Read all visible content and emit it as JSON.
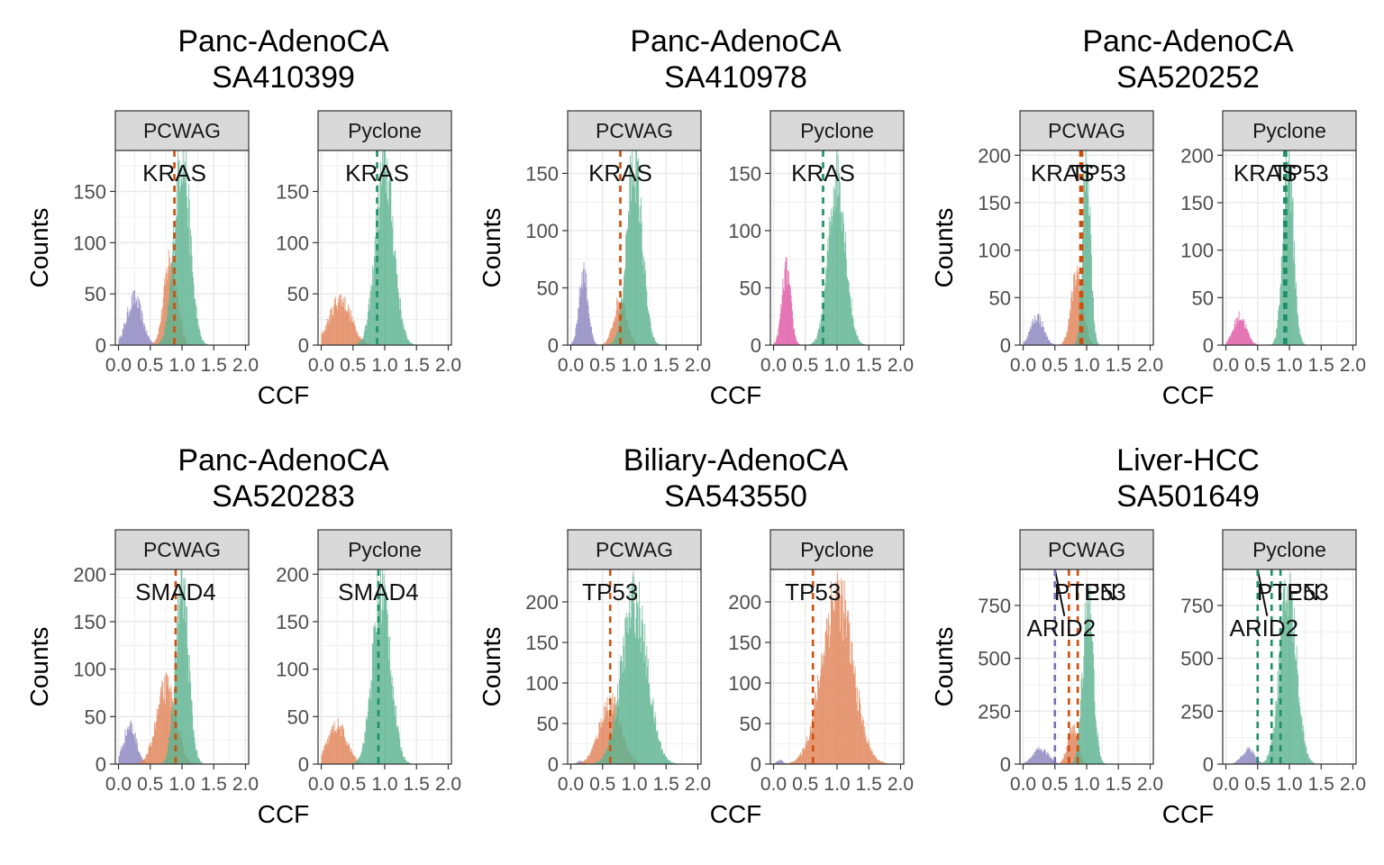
{
  "colors": {
    "purple": "#8e87c0",
    "orange": "#e2855a",
    "green": "#5fb492",
    "pink": "#e05aa6",
    "line_orange": "#cf4f0d",
    "line_green": "#1f8f69",
    "line_purple": "#7570b3",
    "strip_fill": "#d9d9d9",
    "grid": "#ebebeb"
  },
  "chart_data": [
    {
      "type": "histogram",
      "title": "Panc-AdenoCA\nSA410399",
      "xlabel": "CCF",
      "ylabel": "Counts",
      "xlim": [
        -0.05,
        2.05
      ],
      "x_ticks": [
        "0.0",
        "0.5",
        "1.0",
        "1.5",
        "2.0"
      ],
      "y_ticks": [
        0,
        50,
        100,
        150
      ],
      "ylim": [
        0,
        190
      ],
      "facets": [
        {
          "strip": "PCWAG",
          "clusters": [
            {
              "color": "purple",
              "mean": 0.25,
              "sd": 0.12,
              "peak": 45
            },
            {
              "color": "orange",
              "mean": 0.82,
              "sd": 0.1,
              "peak": 85
            },
            {
              "color": "green",
              "mean": 1.0,
              "sd": 0.12,
              "peak": 190
            }
          ],
          "vlines": [
            {
              "x": 0.88,
              "color": "line_orange"
            }
          ],
          "labels": [
            {
              "text": "KRAS",
              "x": 0.88
            }
          ]
        },
        {
          "strip": "Pyclone",
          "clusters": [
            {
              "color": "orange",
              "mean": 0.3,
              "sd": 0.17,
              "peak": 45
            },
            {
              "color": "green",
              "mean": 1.0,
              "sd": 0.14,
              "peak": 175
            }
          ],
          "vlines": [
            {
              "x": 0.88,
              "color": "line_green"
            }
          ],
          "labels": [
            {
              "text": "KRAS",
              "x": 0.88
            }
          ]
        }
      ]
    },
    {
      "type": "histogram",
      "title": "Panc-AdenoCA\nSA410978",
      "xlabel": "CCF",
      "ylabel": "Counts",
      "xlim": [
        -0.05,
        2.05
      ],
      "x_ticks": [
        "0.0",
        "0.5",
        "1.0",
        "1.5",
        "2.0"
      ],
      "y_ticks": [
        0,
        50,
        100,
        150
      ],
      "ylim": [
        0,
        170
      ],
      "facets": [
        {
          "strip": "PCWAG",
          "clusters": [
            {
              "color": "purple",
              "mean": 0.2,
              "sd": 0.07,
              "peak": 65
            },
            {
              "color": "orange",
              "mean": 0.78,
              "sd": 0.1,
              "peak": 40
            },
            {
              "color": "green",
              "mean": 1.0,
              "sd": 0.12,
              "peak": 160
            }
          ],
          "vlines": [
            {
              "x": 0.78,
              "color": "line_orange"
            }
          ],
          "labels": [
            {
              "text": "KRAS",
              "x": 0.78
            }
          ]
        },
        {
          "strip": "Pyclone",
          "clusters": [
            {
              "color": "pink",
              "mean": 0.2,
              "sd": 0.07,
              "peak": 65
            },
            {
              "color": "green",
              "mean": 1.0,
              "sd": 0.13,
              "peak": 150
            }
          ],
          "vlines": [
            {
              "x": 0.78,
              "color": "line_green"
            }
          ],
          "labels": [
            {
              "text": "KRAS",
              "x": 0.78
            }
          ]
        }
      ]
    },
    {
      "type": "histogram",
      "title": "Panc-AdenoCA\nSA520252",
      "xlabel": "CCF",
      "ylabel": "Counts",
      "xlim": [
        -0.05,
        2.05
      ],
      "x_ticks": [
        "0.0",
        "0.5",
        "1.0",
        "1.5",
        "2.0"
      ],
      "y_ticks": [
        0,
        50,
        100,
        150,
        200
      ],
      "ylim": [
        0,
        205
      ],
      "facets": [
        {
          "strip": "PCWAG",
          "clusters": [
            {
              "color": "purple",
              "mean": 0.22,
              "sd": 0.1,
              "peak": 30
            },
            {
              "color": "orange",
              "mean": 0.85,
              "sd": 0.09,
              "peak": 75
            },
            {
              "color": "green",
              "mean": 1.0,
              "sd": 0.06,
              "peak": 200
            }
          ],
          "vlines": [
            {
              "x": 0.9,
              "color": "line_orange"
            },
            {
              "x": 0.93,
              "color": "line_orange"
            }
          ],
          "labels": [
            {
              "text": "KRAS",
              "x": 0.62
            },
            {
              "text": "TP53",
              "x": 1.18
            }
          ]
        },
        {
          "strip": "Pyclone",
          "clusters": [
            {
              "color": "pink",
              "mean": 0.22,
              "sd": 0.1,
              "peak": 30
            },
            {
              "color": "green",
              "mean": 0.98,
              "sd": 0.08,
              "peak": 200
            }
          ],
          "vlines": [
            {
              "x": 0.92,
              "color": "line_green"
            },
            {
              "x": 0.95,
              "color": "line_green"
            }
          ],
          "labels": [
            {
              "text": "KRAS",
              "x": 0.62
            },
            {
              "text": "TP53",
              "x": 1.18
            }
          ]
        }
      ]
    },
    {
      "type": "histogram",
      "title": "Panc-AdenoCA\nSA520283",
      "xlabel": "CCF",
      "ylabel": "Counts",
      "xlim": [
        -0.05,
        2.05
      ],
      "x_ticks": [
        "0.0",
        "0.5",
        "1.0",
        "1.5",
        "2.0"
      ],
      "y_ticks": [
        0,
        50,
        100,
        150,
        200
      ],
      "ylim": [
        0,
        205
      ],
      "facets": [
        {
          "strip": "PCWAG",
          "clusters": [
            {
              "color": "purple",
              "mean": 0.18,
              "sd": 0.1,
              "peak": 40
            },
            {
              "color": "orange",
              "mean": 0.75,
              "sd": 0.15,
              "peak": 80
            },
            {
              "color": "green",
              "mean": 1.0,
              "sd": 0.1,
              "peak": 190
            }
          ],
          "vlines": [
            {
              "x": 0.9,
              "color": "line_orange"
            }
          ],
          "labels": [
            {
              "text": "SMAD4",
              "x": 0.9
            }
          ]
        },
        {
          "strip": "Pyclone",
          "clusters": [
            {
              "color": "orange",
              "mean": 0.25,
              "sd": 0.15,
              "peak": 40
            },
            {
              "color": "green",
              "mean": 0.95,
              "sd": 0.14,
              "peak": 185
            }
          ],
          "vlines": [
            {
              "x": 0.9,
              "color": "line_green"
            }
          ],
          "labels": [
            {
              "text": "SMAD4",
              "x": 0.9
            }
          ]
        }
      ]
    },
    {
      "type": "histogram",
      "title": "Biliary-AdenoCA\nSA543550",
      "xlabel": "CCF",
      "ylabel": "Counts",
      "xlim": [
        -0.05,
        2.05
      ],
      "x_ticks": [
        "0.0",
        "0.5",
        "1.0",
        "1.5",
        "2.0"
      ],
      "y_ticks": [
        0,
        50,
        100,
        150,
        200
      ],
      "ylim": [
        0,
        240
      ],
      "facets": [
        {
          "strip": "PCWAG",
          "clusters": [
            {
              "color": "purple",
              "mean": 0.15,
              "sd": 0.05,
              "peak": 4
            },
            {
              "color": "orange",
              "mean": 0.62,
              "sd": 0.17,
              "peak": 75
            },
            {
              "color": "green",
              "mean": 1.0,
              "sd": 0.2,
              "peak": 200
            }
          ],
          "vlines": [
            {
              "x": 0.62,
              "color": "line_orange"
            }
          ],
          "labels": [
            {
              "text": "TP53",
              "x": 0.62
            }
          ]
        },
        {
          "strip": "Pyclone",
          "clusters": [
            {
              "color": "purple",
              "mean": 0.1,
              "sd": 0.05,
              "peak": 5
            },
            {
              "color": "orange",
              "mean": 1.0,
              "sd": 0.24,
              "peak": 210
            }
          ],
          "vlines": [
            {
              "x": 0.62,
              "color": "line_orange"
            }
          ],
          "labels": [
            {
              "text": "TP53",
              "x": 0.62
            }
          ]
        }
      ]
    },
    {
      "type": "histogram",
      "title": "Liver-HCC\nSA501649",
      "xlabel": "CCF",
      "ylabel": "Counts",
      "xlim": [
        -0.05,
        2.05
      ],
      "x_ticks": [
        "0.0",
        "0.5",
        "1.0",
        "1.5",
        "2.0"
      ],
      "y_ticks": [
        0,
        250,
        500,
        750
      ],
      "ylim": [
        0,
        920
      ],
      "facets": [
        {
          "strip": "PCWAG",
          "clusters": [
            {
              "color": "purple",
              "mean": 0.28,
              "sd": 0.12,
              "peak": 70
            },
            {
              "color": "orange",
              "mean": 0.78,
              "sd": 0.08,
              "peak": 170
            },
            {
              "color": "green",
              "mean": 1.02,
              "sd": 0.08,
              "peak": 800
            }
          ],
          "vlines": [
            {
              "x": 0.5,
              "color": "line_purple"
            },
            {
              "x": 0.72,
              "color": "line_orange"
            },
            {
              "x": 0.86,
              "color": "line_orange"
            }
          ],
          "labels": [
            {
              "text": "PTEN",
              "x": 0.98,
              "row": 0
            },
            {
              "text": "TP53",
              "x": 1.18,
              "row": 0
            },
            {
              "text": "ARID2",
              "x": 0.6,
              "row": 1
            }
          ],
          "leader": [
            [
              0.5,
              920
            ],
            [
              0.65,
              700
            ]
          ]
        },
        {
          "strip": "Pyclone",
          "clusters": [
            {
              "color": "purple",
              "mean": 0.35,
              "sd": 0.1,
              "peak": 70
            },
            {
              "color": "green",
              "mean": 0.98,
              "sd": 0.13,
              "peak": 820
            }
          ],
          "vlines": [
            {
              "x": 0.5,
              "color": "line_green"
            },
            {
              "x": 0.72,
              "color": "line_green"
            },
            {
              "x": 0.86,
              "color": "line_green"
            }
          ],
          "labels": [
            {
              "text": "PTEN",
              "x": 0.98,
              "row": 0
            },
            {
              "text": "TP53",
              "x": 1.18,
              "row": 0
            },
            {
              "text": "ARID2",
              "x": 0.6,
              "row": 1
            }
          ],
          "leader": [
            [
              0.5,
              920
            ],
            [
              0.65,
              700
            ]
          ]
        }
      ]
    }
  ]
}
